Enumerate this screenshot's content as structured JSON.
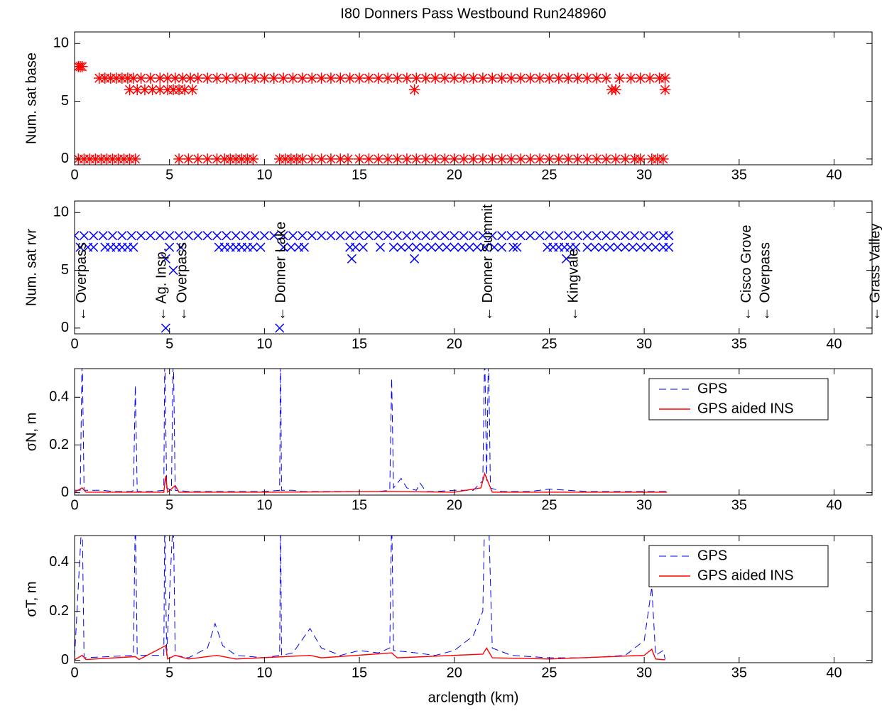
{
  "chart_data": [
    {
      "type": "scatter",
      "title": "I80 Donners Pass Westbound Run248960",
      "y_label": "Num. sat base",
      "xlim": [
        0,
        42
      ],
      "ylim": [
        -0.5,
        11
      ],
      "xticks": [
        0,
        5,
        10,
        15,
        20,
        25,
        30,
        35,
        40
      ],
      "yticks": [
        0,
        5,
        10
      ],
      "series": [
        {
          "color": "#ff0000",
          "marker": "*",
          "x": [
            0.2,
            0.3,
            0.4
          ],
          "values": [
            8,
            8,
            8
          ]
        },
        {
          "color": "#ff0000",
          "marker": "*",
          "x": [
            1.3,
            1.6,
            1.9,
            2.2,
            2.5,
            2.8,
            3.1,
            3.5,
            4.0,
            4.5,
            4.9,
            5.3,
            5.7,
            6.1,
            6.5,
            7.0,
            7.5,
            8.0,
            8.5,
            9.0,
            9.5,
            10.0,
            10.5,
            11.0,
            11.5,
            12.0,
            12.5,
            13.0,
            13.5,
            14.0,
            14.5,
            15.0,
            15.5,
            16.0,
            16.5,
            17.0,
            17.5,
            18.0,
            18.5,
            19.0,
            19.5,
            20.0,
            20.5,
            21.0,
            21.5,
            22.0,
            22.5,
            23.0,
            23.5,
            24.0,
            24.5,
            25.0,
            25.5,
            26.0,
            26.5,
            27.0,
            27.5,
            28.0,
            28.7,
            29.3,
            29.8,
            30.3,
            30.8,
            31.1
          ],
          "values": [
            7,
            7,
            7,
            7,
            7,
            7,
            7,
            7,
            7,
            7,
            7,
            7,
            7,
            7,
            7,
            7,
            7,
            7,
            7,
            7,
            7,
            7,
            7,
            7,
            7,
            7,
            7,
            7,
            7,
            7,
            7,
            7,
            7,
            7,
            7,
            7,
            7,
            7,
            7,
            7,
            7,
            7,
            7,
            7,
            7,
            7,
            7,
            7,
            7,
            7,
            7,
            7,
            7,
            7,
            7,
            7,
            7,
            7,
            7,
            7,
            7,
            7,
            7,
            7
          ]
        },
        {
          "color": "#ff0000",
          "marker": "*",
          "x": [
            2.9,
            3.3,
            3.7,
            4.1,
            4.5,
            4.9,
            5.2,
            5.5,
            5.8,
            6.2,
            17.9,
            28.3,
            28.5,
            31.1
          ],
          "values": [
            6,
            6,
            6,
            6,
            6,
            6,
            6,
            6,
            6,
            6,
            6,
            6,
            6,
            6
          ]
        },
        {
          "color": "#ff0000",
          "marker": "*",
          "x": [
            0.2,
            0.5,
            0.8,
            1.1,
            1.4,
            1.7,
            2.0,
            2.3,
            2.6,
            2.9,
            3.2,
            5.5,
            6.0,
            6.5,
            7.0,
            7.5,
            7.9,
            8.2,
            8.5,
            8.8,
            9.1,
            9.4,
            10.8,
            11.1,
            11.4,
            11.7,
            12.0,
            12.5,
            13.0,
            13.5,
            14.0,
            14.4,
            15.0,
            15.5,
            16.0,
            16.5,
            17.0,
            17.5,
            18.0,
            18.5,
            19.0,
            19.5,
            20.0,
            20.5,
            21.0,
            21.5,
            22.0,
            22.5,
            23.0,
            23.5,
            24.0,
            24.5,
            25.0,
            25.5,
            26.0,
            26.5,
            27.0,
            27.5,
            28.0,
            28.5,
            29.0,
            29.5,
            29.8,
            30.4,
            30.7,
            31.0
          ],
          "values": [
            0,
            0,
            0,
            0,
            0,
            0,
            0,
            0,
            0,
            0,
            0,
            0,
            0,
            0,
            0,
            0,
            0,
            0,
            0,
            0,
            0,
            0,
            0,
            0,
            0,
            0,
            0,
            0,
            0,
            0,
            0,
            0,
            0,
            0,
            0,
            0,
            0,
            0,
            0,
            0,
            0,
            0,
            0,
            0,
            0,
            0,
            0,
            0,
            0,
            0,
            0,
            0,
            0,
            0,
            0,
            0,
            0,
            0,
            0,
            0,
            0,
            0,
            0,
            0,
            0,
            0
          ]
        }
      ]
    },
    {
      "type": "scatter",
      "y_label": "Num. sat rvr",
      "xlim": [
        0,
        42
      ],
      "ylim": [
        -0.5,
        11
      ],
      "xticks": [
        0,
        5,
        10,
        15,
        20,
        25,
        30,
        35,
        40
      ],
      "yticks": [
        0,
        5,
        10
      ],
      "series": [
        {
          "color": "#0000ff",
          "marker": "x",
          "x": [
            0,
            0.5,
            1,
            1.5,
            2,
            2.5,
            3,
            3.5,
            4,
            4.5,
            5,
            5.5,
            6,
            6.5,
            7,
            7.5,
            8,
            8.5,
            9,
            9.5,
            10,
            10.5,
            11,
            11.5,
            12,
            12.5,
            13,
            13.5,
            14,
            14.5,
            15,
            15.5,
            16,
            16.5,
            17,
            17.5,
            18,
            18.5,
            19,
            19.5,
            20,
            20.5,
            21,
            21.5,
            22,
            22.5,
            23,
            23.5,
            24,
            24.5,
            25,
            25.5,
            26,
            26.5,
            27,
            27.5,
            28,
            28.5,
            29,
            29.5,
            30,
            30.5,
            31,
            31.3
          ],
          "values": [
            8,
            8,
            8,
            8,
            8,
            8,
            8,
            8,
            8,
            8,
            8,
            8,
            8,
            8,
            8,
            8,
            8,
            8,
            8,
            8,
            8,
            8,
            8,
            8,
            8,
            8,
            8,
            8,
            8,
            8,
            8,
            8,
            8,
            8,
            8,
            8,
            8,
            8,
            8,
            8,
            8,
            8,
            8,
            8,
            8,
            8,
            8,
            8,
            8,
            8,
            8,
            8,
            8,
            8,
            8,
            8,
            8,
            8,
            8,
            8,
            8,
            8,
            8,
            8
          ]
        },
        {
          "color": "#0000ff",
          "marker": "x",
          "x": [
            0.3,
            0.7,
            1.0,
            1.6,
            1.9,
            2.2,
            2.5,
            2.8,
            3.1,
            5.0,
            5.6,
            7.6,
            7.9,
            8.2,
            8.5,
            8.8,
            9.1,
            9.4,
            9.8,
            11.0,
            11.4,
            11.8,
            12.1,
            14.5,
            14.8,
            15.2,
            16.1,
            16.8,
            17.2,
            17.6,
            18.0,
            18.4,
            18.8,
            19.2,
            19.6,
            20.0,
            20.4,
            20.8,
            21.2,
            21.6,
            22.1,
            22.5,
            23.1,
            23.3,
            24.9,
            25.2,
            25.5,
            25.8,
            26.1,
            26.4,
            27.0,
            27.4,
            27.8,
            28.2,
            28.6,
            29.0,
            29.4,
            29.8,
            30.2,
            30.6,
            31.0,
            31.3
          ],
          "values": [
            7,
            7,
            7,
            7,
            7,
            7,
            7,
            7,
            7,
            7,
            7,
            7,
            7,
            7,
            7,
            7,
            7,
            7,
            7,
            7,
            7,
            7,
            7,
            7,
            7,
            7,
            7,
            7,
            7,
            7,
            7,
            7,
            7,
            7,
            7,
            7,
            7,
            7,
            7,
            7,
            7,
            7,
            7,
            7,
            7,
            7,
            7,
            7,
            7,
            7,
            7,
            7,
            7,
            7,
            7,
            7,
            7,
            7,
            7,
            7,
            7,
            7
          ]
        },
        {
          "color": "#0000ff",
          "marker": "x",
          "x": [
            4.8,
            14.6,
            17.9,
            25.9
          ],
          "values": [
            6,
            6,
            6,
            6
          ]
        },
        {
          "color": "#0000ff",
          "marker": "x",
          "x": [
            5.2
          ],
          "values": [
            5
          ]
        },
        {
          "color": "#0000ff",
          "marker": "x",
          "x": [
            4.8,
            10.8
          ],
          "values": [
            0,
            0
          ]
        }
      ],
      "annotations": [
        {
          "x": 0.4,
          "y": 0.6,
          "text": "← Overpass"
        },
        {
          "x": 4.6,
          "y": 0.6,
          "text": "← Ag. Insp."
        },
        {
          "x": 5.7,
          "y": 0.6,
          "text": "← Overpass"
        },
        {
          "x": 10.9,
          "y": 0.6,
          "text": "← Donner Lake"
        },
        {
          "x": 21.8,
          "y": 0.6,
          "text": "← Donner Summit"
        },
        {
          "x": 26.3,
          "y": 0.6,
          "text": "← Kingvale"
        },
        {
          "x": 35.4,
          "y": 0.6,
          "text": "← Cisco Grove"
        },
        {
          "x": 36.4,
          "y": 0.6,
          "text": "← Overpass"
        },
        {
          "x": 42.2,
          "y": 0.6,
          "text": "← Grass Valley"
        }
      ]
    },
    {
      "type": "line",
      "y_label": "σN, m",
      "xlim": [
        0,
        42
      ],
      "ylim": [
        -0.01,
        0.52
      ],
      "xticks": [
        0,
        5,
        10,
        15,
        20,
        25,
        30,
        35,
        40
      ],
      "yticks": [
        0,
        0.2,
        0.4
      ],
      "legend": "upper right",
      "series": [
        {
          "name": "GPS",
          "color": "#0000ff",
          "line_style": "dashed",
          "x": [
            0,
            0.3,
            0.4,
            0.5,
            1,
            1.5,
            2,
            3,
            3.1,
            3.2,
            3.3,
            4,
            4.7,
            4.75,
            4.85,
            5.1,
            5.2,
            5.3,
            6,
            7,
            8,
            9,
            10,
            10.8,
            10.85,
            10.9,
            11.5,
            12,
            13,
            14,
            15,
            16,
            16.6,
            16.7,
            16.8,
            17.2,
            17.5,
            18,
            18.2,
            18.5,
            19,
            20,
            21,
            21.5,
            21.6,
            21.7,
            21.8,
            21.9,
            22.5,
            23,
            24,
            25,
            26,
            27,
            28,
            29,
            30,
            31.2
          ],
          "values": [
            0.01,
            0.01,
            0.6,
            0.01,
            0.01,
            0.01,
            0.005,
            0.005,
            0.01,
            0.45,
            0.005,
            0.005,
            0.01,
            0.6,
            0.02,
            0.01,
            0.6,
            0.01,
            0.005,
            0.005,
            0.005,
            0.005,
            0.005,
            0.01,
            0.6,
            0.01,
            0.01,
            0.005,
            0.005,
            0.005,
            0.005,
            0.005,
            0.01,
            0.48,
            0.02,
            0.06,
            0.02,
            0.01,
            0.04,
            0.005,
            0.005,
            0.01,
            0.01,
            0.05,
            0.6,
            0.05,
            0.6,
            0.02,
            0.005,
            0.005,
            0.005,
            0.015,
            0.01,
            0.005,
            0.005,
            0.005,
            0.005,
            0.005
          ]
        },
        {
          "name": "GPS aided INS",
          "color": "#ff0000",
          "line_style": "solid",
          "x": [
            0,
            0.4,
            0.6,
            4.7,
            4.8,
            4.9,
            5.3,
            5.5,
            10,
            16.7,
            20,
            21.4,
            21.6,
            21.8,
            22,
            31.2
          ],
          "values": [
            0.002,
            0.02,
            0.002,
            0.002,
            0.07,
            0.002,
            0.03,
            0.002,
            0.002,
            0.005,
            0.002,
            0.02,
            0.08,
            0.04,
            0.002,
            0.002
          ]
        }
      ]
    },
    {
      "type": "line",
      "y_label": "σT, m",
      "x_label": "arclength (km)",
      "xlim": [
        0,
        42
      ],
      "ylim": [
        -0.01,
        0.51
      ],
      "xticks": [
        0,
        5,
        10,
        15,
        20,
        25,
        30,
        35,
        40
      ],
      "yticks": [
        0,
        0.2,
        0.4
      ],
      "legend": "upper right",
      "series": [
        {
          "name": "GPS",
          "color": "#0000ff",
          "line_style": "dashed",
          "x": [
            0,
            0.4,
            0.5,
            3.1,
            3.2,
            3.3,
            4.7,
            4.75,
            4.85,
            5.2,
            5.3,
            6,
            7,
            7.4,
            7.8,
            8.5,
            10,
            10.8,
            10.85,
            10.9,
            11.5,
            12.4,
            13,
            14,
            15,
            16,
            16.6,
            16.7,
            16.8,
            18,
            19,
            20,
            21,
            21.5,
            21.6,
            21.8,
            22,
            23,
            25,
            27,
            29,
            30,
            30.4,
            30.6,
            31,
            31.1
          ],
          "values": [
            0.01,
            0.6,
            0.01,
            0.02,
            0.6,
            0.02,
            0.02,
            0.6,
            0.02,
            0.6,
            0.02,
            0.01,
            0.05,
            0.15,
            0.06,
            0.02,
            0.01,
            0.02,
            0.6,
            0.02,
            0.03,
            0.13,
            0.05,
            0.02,
            0.04,
            0.03,
            0.05,
            0.6,
            0.04,
            0.03,
            0.02,
            0.04,
            0.1,
            0.2,
            0.6,
            0.6,
            0.05,
            0.02,
            0.01,
            0.01,
            0.02,
            0.08,
            0.3,
            0.02,
            0.04,
            0.005
          ]
        },
        {
          "name": "GPS aided INS",
          "color": "#ff0000",
          "line_style": "solid",
          "x": [
            0,
            0.4,
            0.6,
            3.2,
            3.4,
            4.8,
            4.9,
            5.3,
            6,
            7.5,
            8.5,
            12.4,
            13,
            16.7,
            17,
            21.5,
            21.7,
            22,
            25,
            30,
            30.4,
            30.6,
            31.1
          ],
          "values": [
            0.002,
            0.02,
            0.003,
            0.015,
            0.003,
            0.06,
            0.005,
            0.02,
            0.005,
            0.02,
            0.005,
            0.02,
            0.01,
            0.03,
            0.01,
            0.025,
            0.05,
            0.01,
            0.005,
            0.02,
            0.045,
            0.005,
            0.002
          ]
        }
      ]
    }
  ]
}
